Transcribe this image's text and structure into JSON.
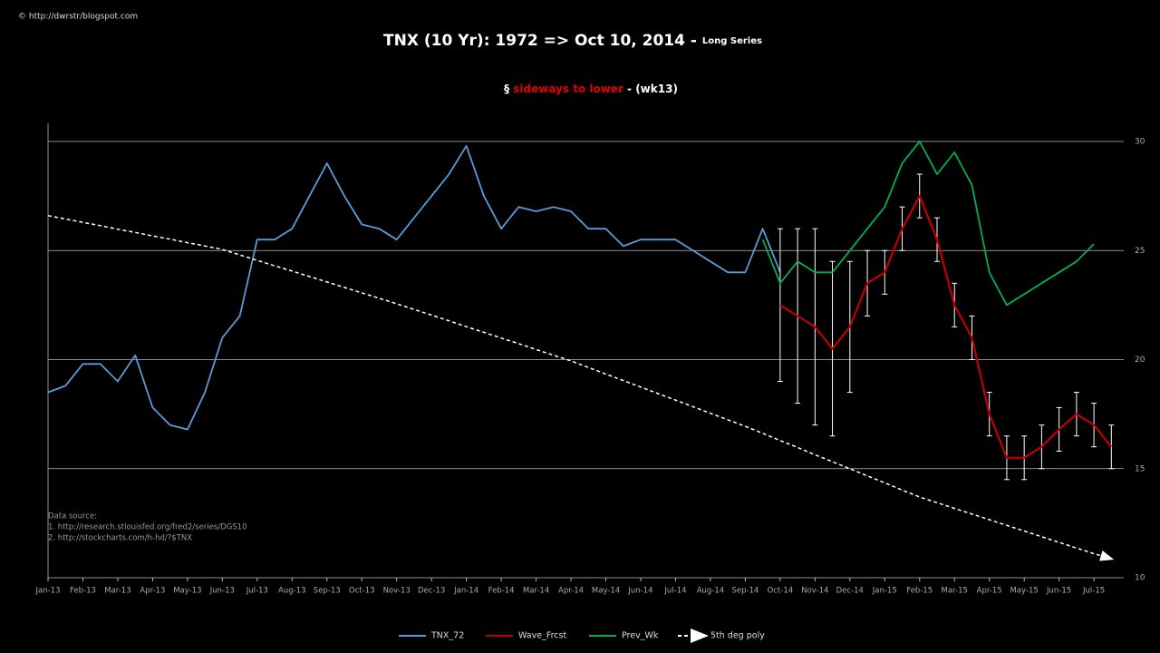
{
  "chart_data": {
    "type": "line",
    "credit": "© http://dwrstr/blogspot.com",
    "title": "TNX (10 Yr): 1972 => Oct 10, 2014 - ",
    "title_suffix": "Long  Series",
    "subtitle": {
      "prefix": "§ ",
      "highlight": "sideways to lower",
      "suffix": " - (wk13)"
    },
    "notes": [
      "Data source:",
      "1. http://research.stlouisfed.org/fred2/series/DGS10",
      "2. http://stockcharts.com/h-hd/?$TNX"
    ],
    "categories": [
      "Jan-13",
      null,
      "Feb-13",
      null,
      "Mar-13",
      null,
      "Apr-13",
      null,
      "May-13",
      null,
      "Jun-13",
      null,
      "Jul-13",
      null,
      "Aug-13",
      null,
      "Sep-13",
      null,
      "Oct-13",
      null,
      "Nov-13",
      null,
      "Dec-13",
      null,
      "Jan-14",
      null,
      "Feb-14",
      null,
      "Mar-14",
      null,
      "Apr-14",
      null,
      "May-14",
      null,
      "Jun-14",
      null,
      "Jul-14",
      null,
      "Aug-14",
      null,
      "Sep-14",
      null,
      "Oct-14",
      null,
      "Nov-14",
      null,
      "Dec-14",
      null,
      "Jan-15",
      null,
      "Feb-15",
      null,
      "Mar-15",
      null,
      "Apr-15",
      null,
      "May-15",
      null,
      "Jun-15",
      null,
      "Jul-15",
      null
    ],
    "series": [
      {
        "name": "TNX_72",
        "color": "#5b9bd5",
        "style": "solid",
        "values": [
          18.5,
          18.8,
          19.8,
          19.8,
          19,
          20.2,
          17.8,
          17,
          16.8,
          18.5,
          21,
          22,
          25.5,
          25.5,
          26,
          27.5,
          29,
          27.5,
          26.2,
          26,
          25.5,
          26.5,
          27.5,
          28.5,
          29.8,
          27.5,
          26,
          27,
          26.8,
          27,
          26.8,
          26,
          26,
          25.2,
          25.5,
          25.5,
          25.5,
          25,
          24.5,
          24,
          24,
          26,
          24,
          null,
          null,
          null,
          null,
          null,
          null,
          null,
          null,
          null,
          null,
          null,
          null,
          null,
          null,
          null,
          null,
          null,
          null,
          null
        ]
      },
      {
        "name": "Wave_Frcst",
        "color": "#c00000",
        "style": "solid",
        "values": [
          null,
          null,
          null,
          null,
          null,
          null,
          null,
          null,
          null,
          null,
          null,
          null,
          null,
          null,
          null,
          null,
          null,
          null,
          null,
          null,
          null,
          null,
          null,
          null,
          null,
          null,
          null,
          null,
          null,
          null,
          null,
          null,
          null,
          null,
          null,
          null,
          null,
          null,
          null,
          null,
          null,
          null,
          22.5,
          22,
          21.5,
          20.5,
          21.5,
          23.5,
          24,
          26,
          27.5,
          25.5,
          22.5,
          21,
          17.5,
          15.5,
          15.5,
          16,
          16.8,
          17.5,
          17,
          16
        ],
        "errors": [
          null,
          null,
          null,
          null,
          null,
          null,
          null,
          null,
          null,
          null,
          null,
          null,
          null,
          null,
          null,
          null,
          null,
          null,
          null,
          null,
          null,
          null,
          null,
          null,
          null,
          null,
          null,
          null,
          null,
          null,
          null,
          null,
          null,
          null,
          null,
          null,
          null,
          null,
          null,
          null,
          null,
          null,
          3.5,
          4,
          4.5,
          4,
          3,
          1.5,
          1,
          1,
          1,
          1,
          1,
          1,
          1,
          1,
          1,
          1,
          1,
          1,
          1,
          1
        ]
      },
      {
        "name": "Prev_Wk",
        "color": "#00b050",
        "style": "solid",
        "values": [
          null,
          null,
          null,
          null,
          null,
          null,
          null,
          null,
          null,
          null,
          null,
          null,
          null,
          null,
          null,
          null,
          null,
          null,
          null,
          null,
          null,
          null,
          null,
          null,
          null,
          null,
          null,
          null,
          null,
          null,
          null,
          null,
          null,
          null,
          null,
          null,
          null,
          null,
          null,
          null,
          null,
          25.5,
          23.5,
          24.5,
          24,
          24,
          25,
          26,
          27,
          29,
          30,
          28.5,
          29.5,
          28,
          24,
          22.5,
          23,
          23.5,
          24,
          24.5,
          25.3,
          null
        ]
      },
      {
        "name": "5th deg poly",
        "color": "#ffffff",
        "style": "dashed",
        "values": [
          26.6,
          26.45,
          26.29,
          26.14,
          25.98,
          25.83,
          25.67,
          25.52,
          25.36,
          25.21,
          25.05,
          24.8,
          24.55,
          24.3,
          24.06,
          23.81,
          23.56,
          23.31,
          23.06,
          22.81,
          22.56,
          22.3,
          22.04,
          21.78,
          21.51,
          21.25,
          20.99,
          20.73,
          20.46,
          20.2,
          19.94,
          19.64,
          19.34,
          19.04,
          18.74,
          18.44,
          18.14,
          17.84,
          17.54,
          17.24,
          16.94,
          16.62,
          16.29,
          15.97,
          15.64,
          15.32,
          15.0,
          14.67,
          14.35,
          14.02,
          13.7,
          13.44,
          13.18,
          12.92,
          12.66,
          12.4,
          12.14,
          11.88,
          11.62,
          11.36,
          11.1,
          10.87
        ]
      }
    ],
    "ylim": [
      10,
      30
    ],
    "yticks": [
      10,
      15,
      20,
      25,
      30
    ],
    "grid": true,
    "legend": "bottom"
  }
}
